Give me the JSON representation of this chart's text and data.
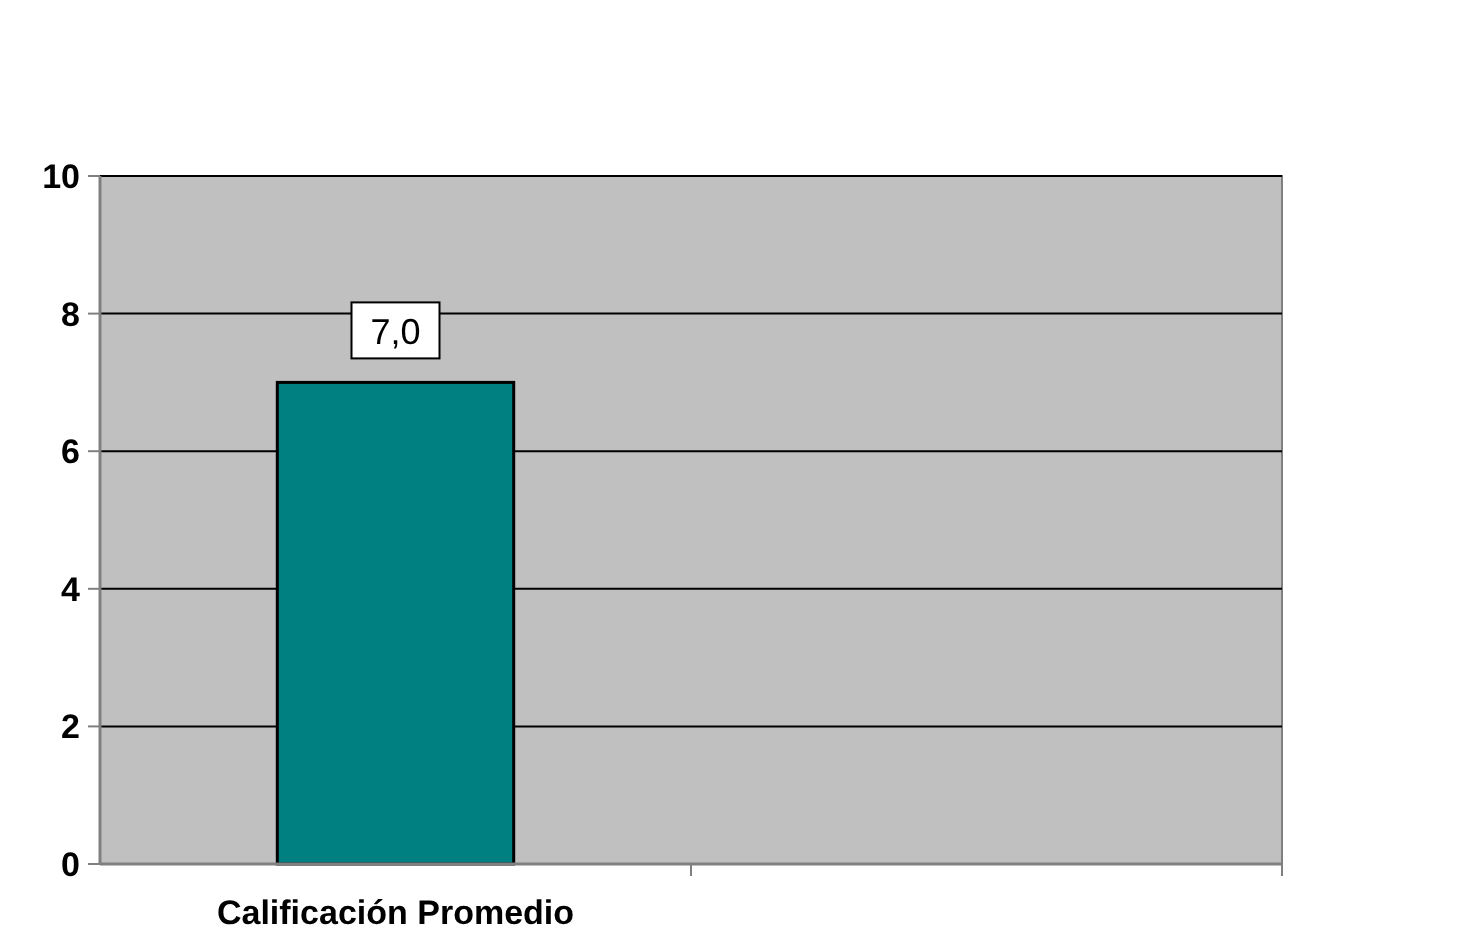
{
  "chart_data": {
    "type": "bar",
    "categories": [
      "Calificación Promedio",
      null
    ],
    "values": [
      7.0,
      null
    ],
    "value_labels": [
      "7,0",
      null
    ],
    "color": "#008080",
    "ylim": [
      0,
      10
    ],
    "yticks": [
      0,
      2,
      4,
      6,
      8,
      10
    ],
    "grid": "y"
  }
}
